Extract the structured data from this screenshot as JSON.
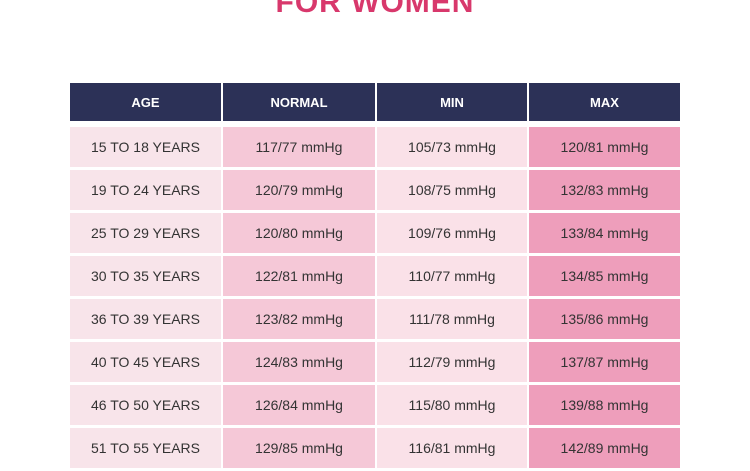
{
  "header": {
    "title": "FOR WOMEN"
  },
  "table": {
    "columns": [
      "AGE",
      "NORMAL",
      "MIN",
      "MAX"
    ],
    "rows": [
      [
        "15 TO 18 YEARS",
        "117/77 mmHg",
        "105/73 mmHg",
        "120/81 mmHg"
      ],
      [
        "19 TO 24 YEARS",
        "120/79 mmHg",
        "108/75 mmHg",
        "132/83 mmHg"
      ],
      [
        "25 TO 29 YEARS",
        "120/80 mmHg",
        "109/76 mmHg",
        "133/84 mmHg"
      ],
      [
        "30 TO 35 YEARS",
        "122/81 mmHg",
        "110/77 mmHg",
        "134/85 mmHg"
      ],
      [
        "36 TO 39 YEARS",
        "123/82 mmHg",
        "111/78 mmHg",
        "135/86 mmHg"
      ],
      [
        "40 TO 45 YEARS",
        "124/83 mmHg",
        "112/79 mmHg",
        "137/87 mmHg"
      ],
      [
        "46 TO 50 YEARS",
        "126/84 mmHg",
        "115/80 mmHg",
        "139/88 mmHg"
      ],
      [
        "51 TO 55 YEARS",
        "129/85 mmHg",
        "116/81 mmHg",
        "142/89 mmHg"
      ]
    ]
  }
}
